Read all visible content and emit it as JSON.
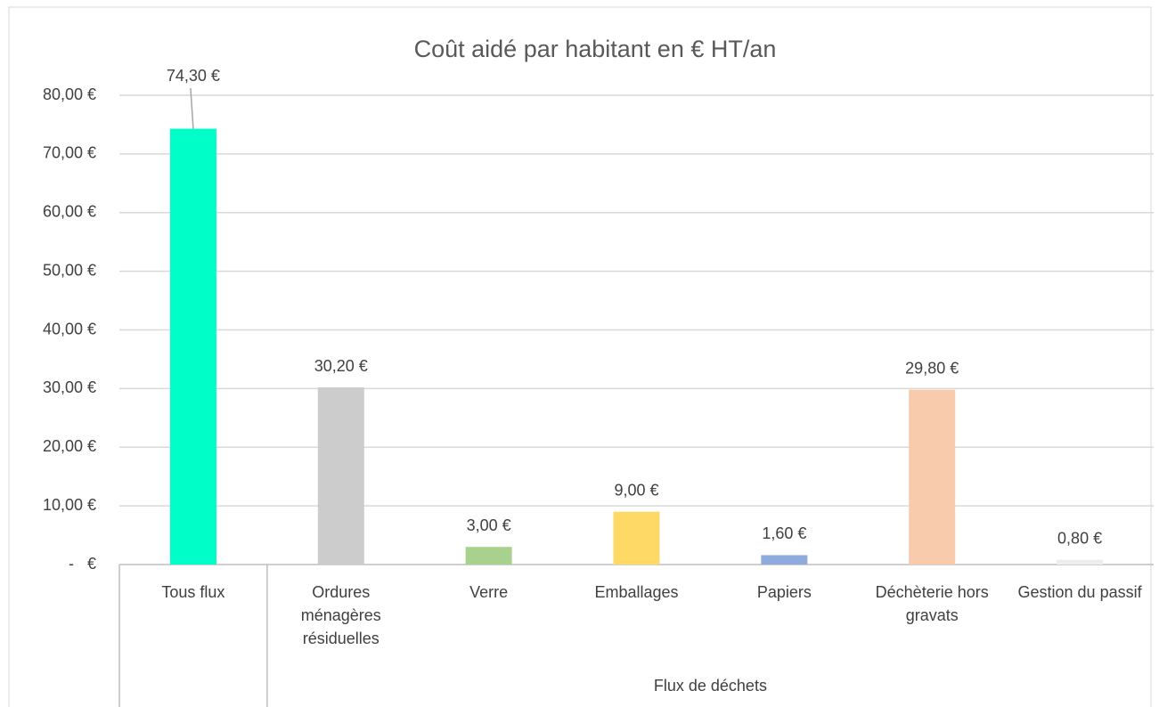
{
  "chart_data": {
    "type": "bar",
    "title": "Coût aidé par habitant en € HT/an",
    "categories": [
      "Tous flux",
      "Ordures ménagères résiduelles",
      "Verre",
      "Emballages",
      "Papiers",
      "Déchèterie hors gravats",
      "Gestion du passif"
    ],
    "x_group_label": "Flux de déchets",
    "values": [
      74.3,
      30.2,
      3.0,
      9.0,
      1.6,
      29.8,
      0.8
    ],
    "value_labels": [
      "74,30 €",
      "30,20 €",
      "3,00 €",
      "9,00 €",
      "1,60 €",
      "29,80 €",
      "0,80 €"
    ],
    "colors": [
      "#00ffc8",
      "#cccccc",
      "#a9d18e",
      "#ffd966",
      "#8faadc",
      "#f8cbad",
      "#ededed"
    ],
    "ylim": [
      0,
      80
    ],
    "yticks": [
      {
        "value": 0,
        "label": "-   €"
      },
      {
        "value": 10,
        "label": "10,00 €"
      },
      {
        "value": 20,
        "label": "20,00 €"
      },
      {
        "value": 30,
        "label": "30,00 €"
      },
      {
        "value": 40,
        "label": "40,00 €"
      },
      {
        "value": 50,
        "label": "50,00 €"
      },
      {
        "value": 60,
        "label": "60,00 €"
      },
      {
        "value": 70,
        "label": "70,00 €"
      },
      {
        "value": 80,
        "label": "80,00 €"
      }
    ],
    "grid": true
  }
}
